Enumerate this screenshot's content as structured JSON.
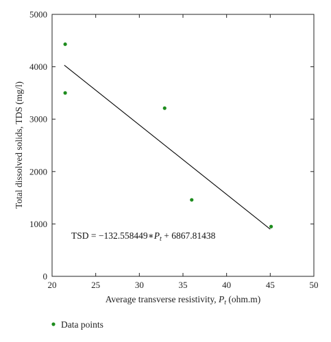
{
  "chart_data": {
    "type": "scatter",
    "title": "",
    "xlabel": "Average transverse resistivity, ",
    "xlabel_symbol": "P",
    "xlabel_subscript": "t",
    "xlabel_unit": " (ohm.m)",
    "ylabel": "Total dissolved solids, TDS (mg/l)",
    "xlim": [
      20,
      50
    ],
    "ylim": [
      0,
      5000
    ],
    "xticks": [
      20,
      25,
      30,
      35,
      40,
      45,
      50
    ],
    "yticks": [
      0,
      1000,
      2000,
      3000,
      4000,
      5000
    ],
    "series": [
      {
        "name": "Data points",
        "color": "#1e8c1e",
        "x": [
          21.5,
          21.5,
          32.9,
          36.0,
          45.1
        ],
        "y": [
          4430,
          3500,
          3210,
          1460,
          950
        ]
      }
    ],
    "fit_line": {
      "color": "#000000",
      "x": [
        21.4,
        45.0
      ],
      "y": [
        4030,
        900
      ]
    },
    "equation": {
      "prefix": "TSD = −132.558449∗",
      "symbol": "P",
      "subscript": "t",
      "suffix": " + 6867.81438"
    },
    "legend": {
      "position": "bottom-left",
      "label": "Data points"
    }
  }
}
